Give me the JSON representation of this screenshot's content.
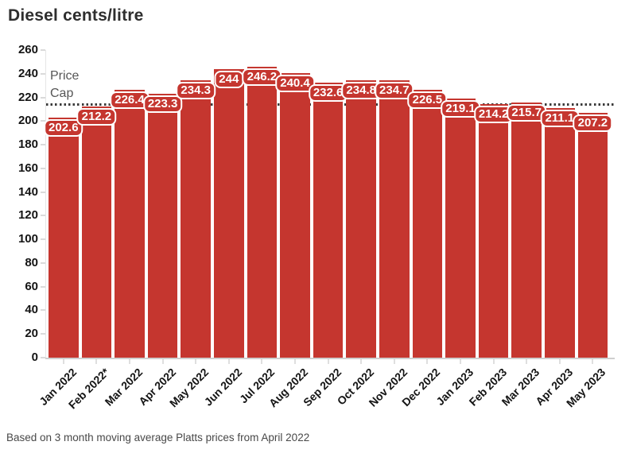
{
  "title": "Diesel cents/litre",
  "footnote": "Based on 3 month moving average Platts prices from April 2022",
  "price_cap": {
    "label": "Price Cap"
  },
  "chart_data": {
    "type": "bar",
    "title": "Diesel cents/litre",
    "xlabel": "",
    "ylabel": "Diesel cents/litre",
    "categories": [
      "Jan 2022",
      "Feb 2022*",
      "Mar 2022",
      "Apr 2022",
      "May 2022",
      "Jun 2022",
      "Jul 2022",
      "Aug 2022",
      "Sep 2022",
      "Oct 2022",
      "Nov 2022",
      "Dec 2022",
      "Jan 2023",
      "Feb 2023",
      "Mar 2023",
      "Apr 2023",
      "May 2023"
    ],
    "values": [
      202.6,
      212.2,
      226.4,
      223.3,
      234.3,
      244,
      246.2,
      240.4,
      232.6,
      234.8,
      234.7,
      226.5,
      219.1,
      214.2,
      215.7,
      211.1,
      207.2
    ],
    "value_labels": [
      "202.6",
      "212.2",
      "226.4",
      "223.3",
      "234.3",
      "244",
      "246.2",
      "240.4",
      "232.6",
      "234.8",
      "234.7",
      "226.5",
      "219.1",
      "214.2",
      "215.7",
      "211.1",
      "207.2"
    ],
    "ylim": [
      0,
      260
    ],
    "yticks": [
      0,
      20,
      40,
      60,
      80,
      100,
      120,
      140,
      160,
      180,
      200,
      220,
      240,
      260
    ],
    "grid": false,
    "bar_color": "#c5362f",
    "annotation": {
      "text": "Price Cap",
      "line_value": 214.5,
      "line_style": "dotted",
      "line_color": "#3b3b3b",
      "note": "price cap level estimated from dotted line position"
    }
  }
}
